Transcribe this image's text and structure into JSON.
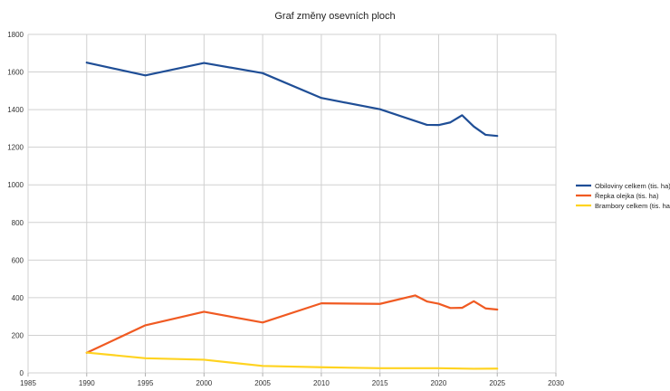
{
  "chart_data": {
    "type": "line",
    "title": "Graf změny osevních ploch",
    "xlabel": "",
    "ylabel": "",
    "xlim": [
      1985,
      2030
    ],
    "ylim": [
      0,
      1800
    ],
    "xticks": [
      1985,
      1990,
      1995,
      2000,
      2005,
      2010,
      2015,
      2020,
      2025,
      2030
    ],
    "yticks": [
      0,
      200,
      400,
      600,
      800,
      1000,
      1200,
      1400,
      1600,
      1800
    ],
    "grid": true,
    "legend_position": "right",
    "series": [
      {
        "name": "Obiloviny celkem (tis. ha)",
        "color": "#1f4e96",
        "x": [
          1990,
          1995,
          2000,
          2005,
          2010,
          2015,
          2019,
          2020,
          2021,
          2022,
          2023,
          2024,
          2025
        ],
        "y": [
          1650,
          1582,
          1648,
          1594,
          1462,
          1402,
          1319,
          1318,
          1332,
          1370,
          1310,
          1266,
          1260
        ]
      },
      {
        "name": "Řepka olejka (tis. ha)",
        "color": "#f05a22",
        "x": [
          1990,
          1995,
          2000,
          2005,
          2010,
          2015,
          2018,
          2019,
          2020,
          2021,
          2022,
          2023,
          2024,
          2025
        ],
        "y": [
          107,
          253,
          325,
          268,
          370,
          367,
          412,
          380,
          368,
          345,
          346,
          381,
          343,
          337
        ]
      },
      {
        "name": "Brambory celkem (tis. ha)",
        "color": "#ffd320",
        "x": [
          1990,
          1995,
          2000,
          2005,
          2010,
          2015,
          2020,
          2023,
          2025
        ],
        "y": [
          108,
          78,
          70,
          37,
          30,
          25,
          25,
          22,
          23
        ]
      }
    ]
  }
}
